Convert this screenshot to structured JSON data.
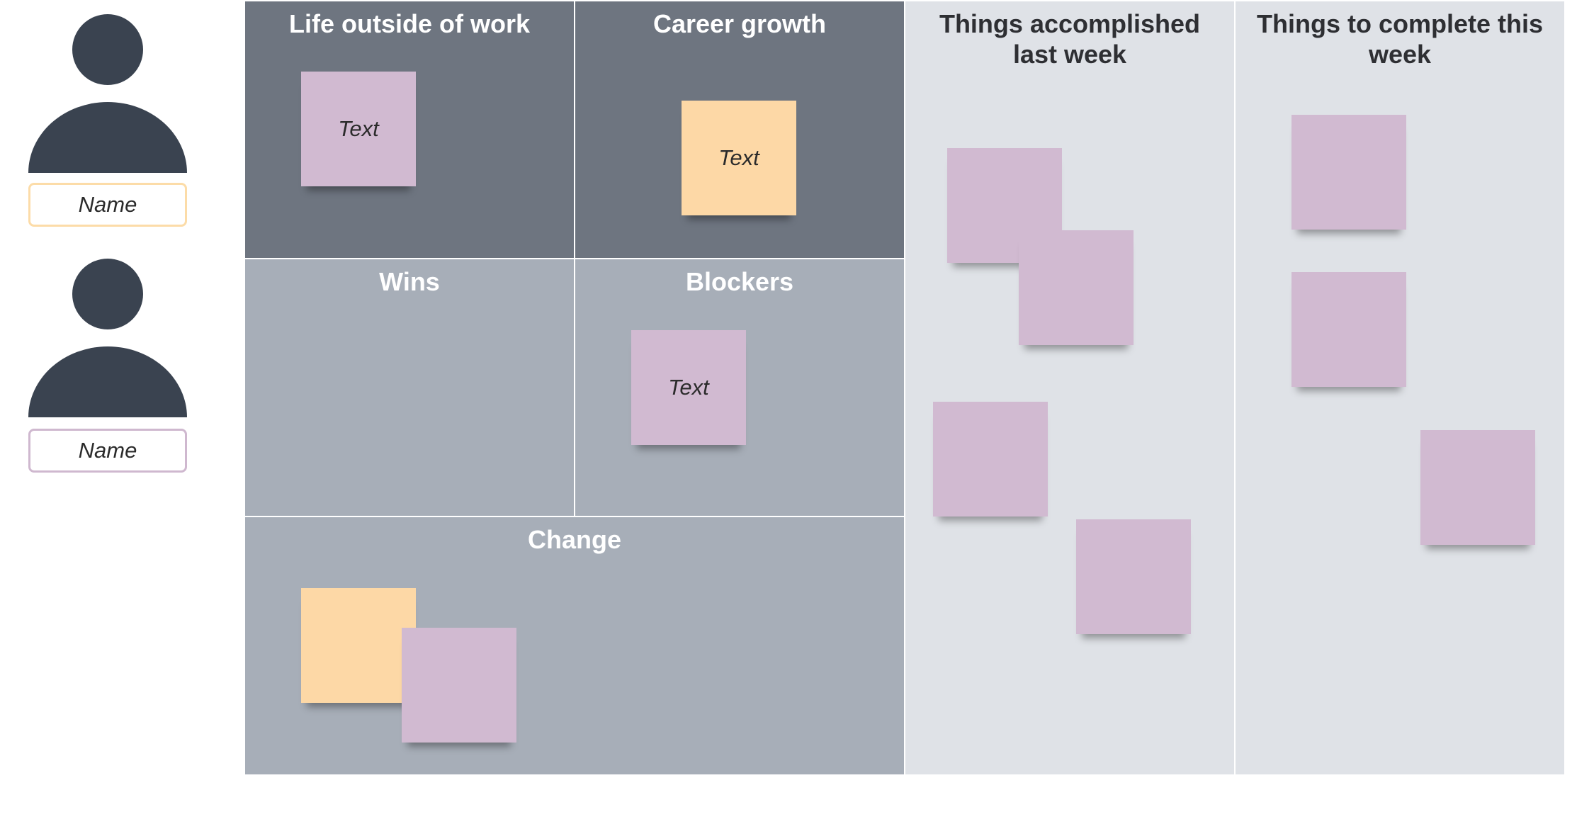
{
  "people": [
    {
      "name": "Name",
      "border_color": "#fcdca8"
    },
    {
      "name": "Name",
      "border_color": "#cfb8cf"
    }
  ],
  "zones": {
    "life_outside_work": "Life outside of work",
    "career_growth": "Career growth",
    "wins": "Wins",
    "blockers": "Blockers",
    "change": "Change",
    "accomplished_last_week": "Things accomplished last week",
    "complete_this_week": "Things to complete this week"
  },
  "notes": {
    "life_note": "Text",
    "career_note": "Text",
    "blockers_note": "Text"
  },
  "colors": {
    "dark_zone": "#6e7580",
    "mid_zone": "#a7aeb8",
    "light_zone": "#dfe2e7",
    "note_purple": "#d1bad1",
    "note_orange": "#fdd8a6",
    "person": "#3a4350"
  }
}
